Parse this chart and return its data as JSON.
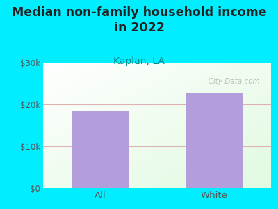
{
  "title": "Median non-family household income\nin 2022",
  "subtitle": "Kaplan, LA",
  "categories": [
    "All",
    "White"
  ],
  "values": [
    18500,
    22800
  ],
  "bar_color": "#b39ddb",
  "title_fontsize": 12.5,
  "subtitle_fontsize": 10,
  "subtitle_color": "#008888",
  "title_color": "#222222",
  "tick_color": "#555555",
  "bg_outer": "#00eeff",
  "ylim": [
    0,
    30000
  ],
  "yticks": [
    0,
    10000,
    20000,
    30000
  ],
  "ytick_labels": [
    "$0",
    "$10k",
    "$20k",
    "$30k"
  ],
  "grid_color": "#ddaaaa",
  "watermark": "  City-Data.com"
}
